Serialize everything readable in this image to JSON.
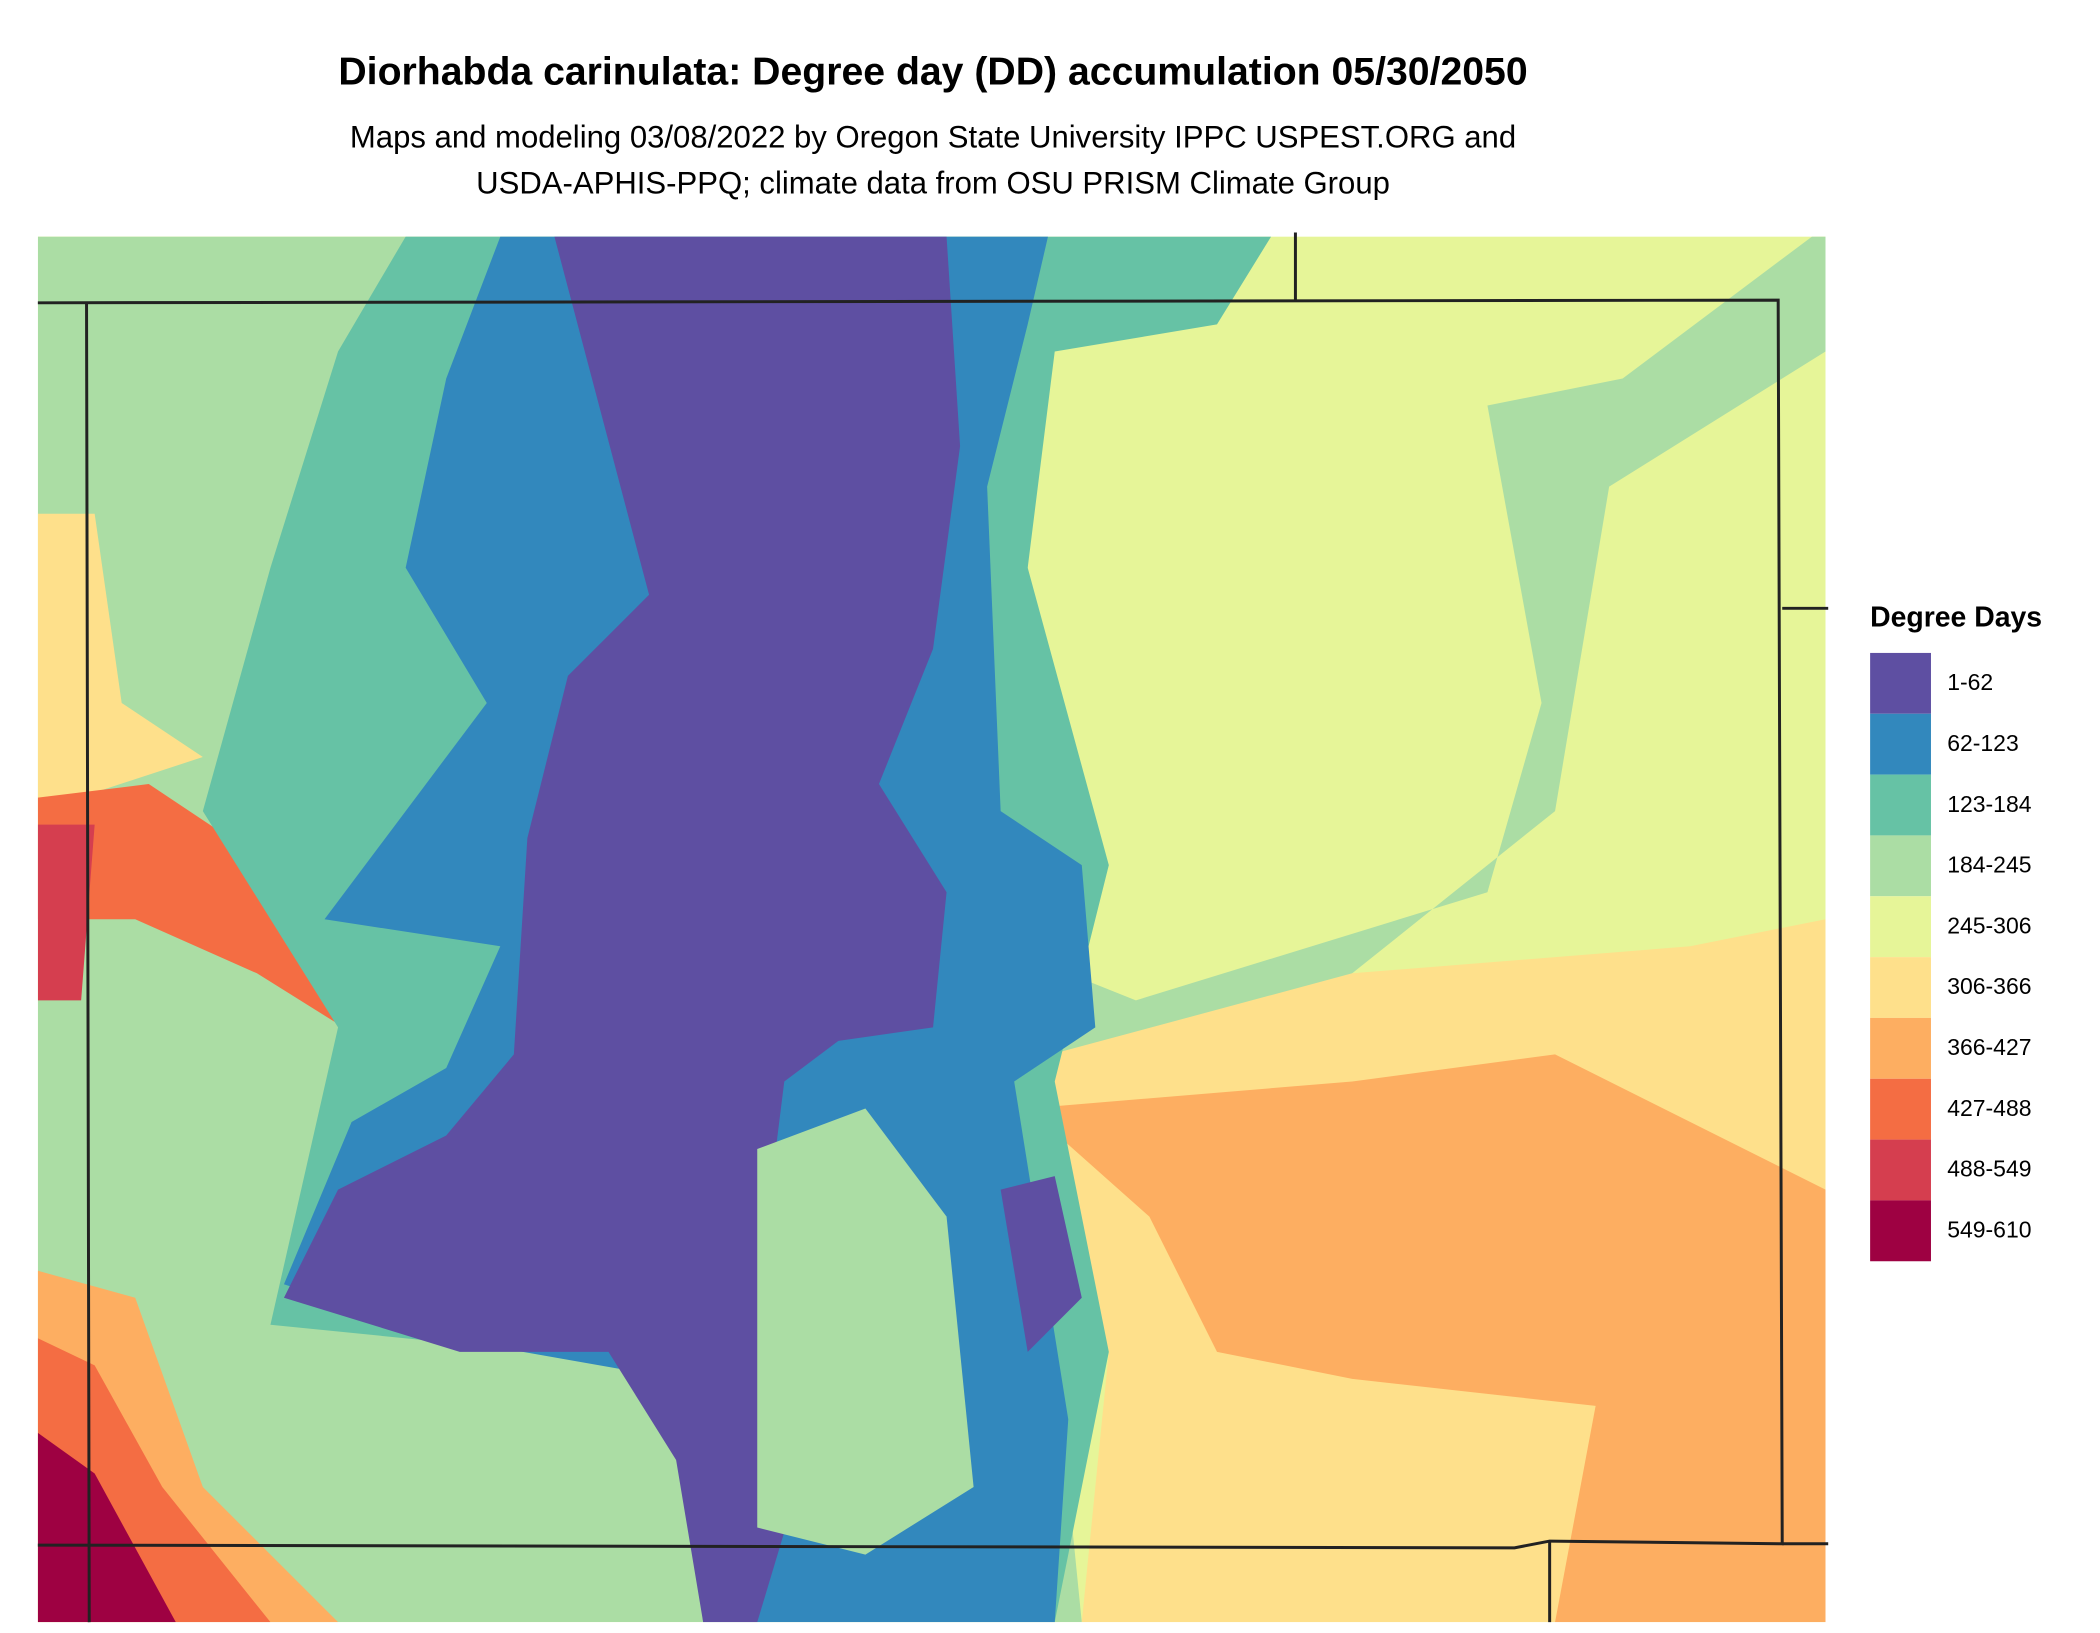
{
  "title": "Diorhabda carinulata: Degree day (DD) accumulation 05/30/2050",
  "subtitle": [
    "Maps and modeling 03/08/2022 by Oregon State University IPPC USPEST.ORG and",
    "USDA-APHIS-PPQ; climate data from OSU PRISM Climate Group"
  ],
  "legend": {
    "title": "Degree Days",
    "items": [
      {
        "label": "1-62",
        "color": "#5e4fa2"
      },
      {
        "label": "62-123",
        "color": "#3288bd"
      },
      {
        "label": "123-184",
        "color": "#66c2a5"
      },
      {
        "label": "184-245",
        "color": "#abdda4"
      },
      {
        "label": "245-306",
        "color": "#e6f598"
      },
      {
        "label": "306-366",
        "color": "#fee08b"
      },
      {
        "label": "366-427",
        "color": "#fdae61"
      },
      {
        "label": "427-488",
        "color": "#f46d43"
      },
      {
        "label": "488-549",
        "color": "#d53e4f"
      },
      {
        "label": "549-610",
        "color": "#9e0142"
      }
    ]
  }
}
